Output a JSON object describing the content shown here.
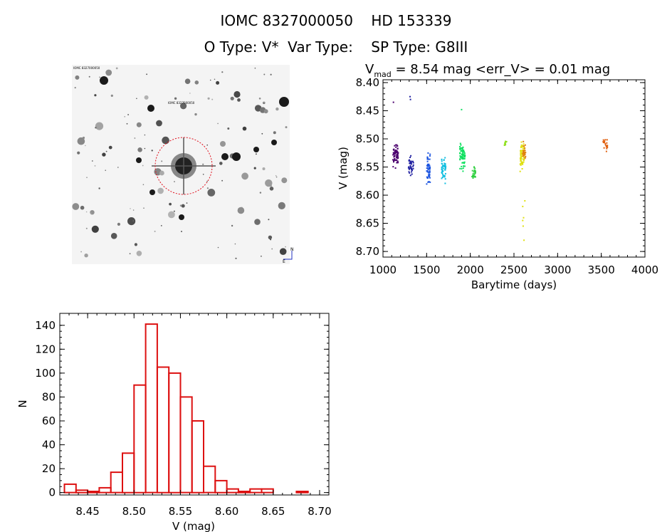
{
  "header": {
    "line1": "IOMC 8327000050    HD 153339",
    "line2": "O Type: V*  Var Type:    SP Type: G8III"
  },
  "image_panel": {
    "description_labels": [
      "IOMC 8327000050",
      "N",
      "E"
    ],
    "colors": {
      "star": "#000000",
      "circle": "#e0101e"
    }
  },
  "chart_data": [
    {
      "type": "scatter",
      "title": "V_mad = 8.54 mag <err_V> = 0.01 mag",
      "title_parts": {
        "v": "V",
        "sub": "mad",
        "rest": " = 8.54 mag <err_V> = 0.01 mag"
      },
      "xlabel": "Barytime (days)",
      "ylabel": "V (mag)",
      "xlim": [
        1000,
        4000
      ],
      "ylim": [
        8.71,
        8.395
      ],
      "xticks": [
        1000,
        1500,
        2000,
        2500,
        3000,
        3500,
        4000
      ],
      "yticks": [
        8.4,
        8.45,
        8.5,
        8.55,
        8.6,
        8.65,
        8.7
      ],
      "series": [
        {
          "color": "#4b006e",
          "x_range": [
            1110,
            1175
          ],
          "y_center": 8.53,
          "y_spread": 0.03,
          "count": 70
        },
        {
          "color": "#2020a0",
          "x_range": [
            1290,
            1350
          ],
          "y_center": 8.55,
          "y_spread": 0.025,
          "count": 40
        },
        {
          "color": "#1c55e0",
          "x_range": [
            1500,
            1540
          ],
          "y_center": 8.55,
          "y_spread": 0.035,
          "count": 60
        },
        {
          "color": "#10bfe0",
          "x_range": [
            1670,
            1720
          ],
          "y_center": 8.555,
          "y_spread": 0.03,
          "count": 50
        },
        {
          "color": "#10e060",
          "x_range": [
            1880,
            1940
          ],
          "y_center": 8.53,
          "y_spread": 0.035,
          "count": 70
        },
        {
          "color": "#30d040",
          "x_range": [
            2020,
            2060
          ],
          "y_center": 8.56,
          "y_spread": 0.015,
          "count": 25
        },
        {
          "color": "#90e020",
          "x_range": [
            2390,
            2420
          ],
          "y_center": 8.508,
          "y_spread": 0.006,
          "count": 10
        },
        {
          "color": "#e0e010",
          "x_range": [
            2570,
            2620
          ],
          "y_center": 8.53,
          "y_spread": 0.03,
          "count": 70
        },
        {
          "color": "#e08010",
          "x_range": [
            2600,
            2640
          ],
          "y_center": 8.52,
          "y_spread": 0.025,
          "count": 25
        },
        {
          "color": "#e06010",
          "x_range": [
            3520,
            3570
          ],
          "y_center": 8.51,
          "y_spread": 0.015,
          "count": 20
        }
      ],
      "outliers": [
        {
          "x": 1310,
          "y": 8.425,
          "color": "#2020a0"
        },
        {
          "x": 1315,
          "y": 8.43,
          "color": "#2020a0"
        },
        {
          "x": 1120,
          "y": 8.435,
          "color": "#4b006e"
        },
        {
          "x": 1900,
          "y": 8.448,
          "color": "#10e060"
        },
        {
          "x": 2610,
          "y": 8.64,
          "color": "#e0e010"
        },
        {
          "x": 2600,
          "y": 8.645,
          "color": "#e0e010"
        },
        {
          "x": 2605,
          "y": 8.655,
          "color": "#e0e010"
        },
        {
          "x": 2615,
          "y": 8.68,
          "color": "#e0e010"
        },
        {
          "x": 2600,
          "y": 8.62,
          "color": "#e0e010"
        },
        {
          "x": 2625,
          "y": 8.61,
          "color": "#e0e010"
        }
      ]
    },
    {
      "type": "bar",
      "title": "",
      "xlabel": "V (mag)",
      "ylabel": "N",
      "xlim": [
        8.42,
        8.71
      ],
      "ylim": [
        -2,
        150
      ],
      "xticks": [
        8.45,
        8.5,
        8.55,
        8.6,
        8.65,
        8.7
      ],
      "xtick_labels": [
        "8.45",
        "8.50",
        "8.55",
        "8.60",
        "8.65",
        "8.70"
      ],
      "yticks": [
        0,
        20,
        40,
        60,
        80,
        100,
        120,
        140
      ],
      "bin_width": 0.0125,
      "bin_starts": [
        8.425,
        8.4375,
        8.45,
        8.4625,
        8.475,
        8.4875,
        8.5,
        8.5125,
        8.525,
        8.5375,
        8.55,
        8.5625,
        8.575,
        8.5875,
        8.6,
        8.6125,
        8.625,
        8.6375,
        8.65,
        8.6625,
        8.675
      ],
      "values": [
        7,
        2,
        1,
        4,
        17,
        33,
        90,
        141,
        105,
        100,
        80,
        60,
        22,
        10,
        3,
        1,
        3,
        3,
        0,
        0,
        1
      ],
      "color": "#dd1111"
    }
  ]
}
